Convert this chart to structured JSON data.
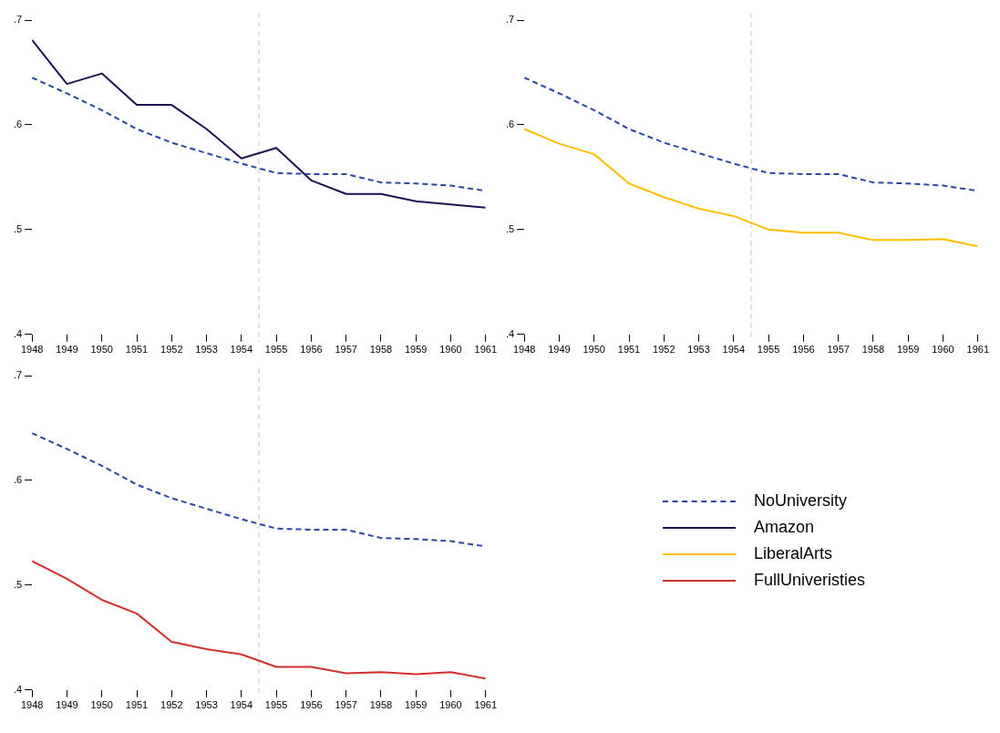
{
  "chart_data": [
    {
      "type": "line",
      "x": [
        1948,
        1949,
        1950,
        1951,
        1952,
        1953,
        1954,
        1955,
        1956,
        1957,
        1958,
        1959,
        1960,
        1961
      ],
      "xlim": [
        1948,
        1961
      ],
      "xticks": [
        1948,
        1949,
        1950,
        1951,
        1952,
        1953,
        1954,
        1955,
        1956,
        1957,
        1958,
        1959,
        1960,
        1961
      ],
      "ylim": [
        0.4,
        0.7
      ],
      "yticks": [
        {
          "value": 0.4,
          "label": ".4"
        },
        {
          "value": 0.5,
          "label": ".5"
        },
        {
          "value": 0.6,
          "label": ".6"
        },
        {
          "value": 0.7,
          "label": ".7"
        }
      ],
      "grid": false,
      "legend": "bottom",
      "ref_lines": [
        {
          "axis": "x",
          "value": 1954.5,
          "color": "#d9d9d9",
          "line_style": "dashed"
        }
      ],
      "series": [
        {
          "name": "NoUniversity",
          "color": "#2a46a0",
          "line_style": "dashed",
          "values": [
            0.645,
            0.63,
            0.614,
            0.596,
            0.583,
            0.573,
            0.563,
            0.554,
            0.553,
            0.553,
            0.545,
            0.544,
            0.542,
            0.537
          ]
        },
        {
          "name": "Amazon",
          "color": "#1a1550",
          "line_style": "solid",
          "values": [
            0.681,
            0.639,
            0.649,
            0.619,
            0.619,
            0.596,
            0.568,
            0.578,
            0.547,
            0.534,
            0.534,
            0.527,
            0.524,
            0.521
          ]
        }
      ]
    },
    {
      "type": "line",
      "x": [
        1948,
        1949,
        1950,
        1951,
        1952,
        1953,
        1954,
        1955,
        1956,
        1957,
        1958,
        1959,
        1960,
        1961
      ],
      "xlim": [
        1948,
        1961
      ],
      "xticks": [
        1948,
        1949,
        1950,
        1951,
        1952,
        1953,
        1954,
        1955,
        1956,
        1957,
        1958,
        1959,
        1960,
        1961
      ],
      "ylim": [
        0.4,
        0.7
      ],
      "yticks": [
        {
          "value": 0.4,
          "label": ".4"
        },
        {
          "value": 0.5,
          "label": ".5"
        },
        {
          "value": 0.6,
          "label": ".6"
        },
        {
          "value": 0.7,
          "label": ".7"
        }
      ],
      "grid": false,
      "legend": "bottom",
      "ref_lines": [
        {
          "axis": "x",
          "value": 1954.5,
          "color": "#d9d9d9",
          "line_style": "dashed"
        }
      ],
      "series": [
        {
          "name": "NoUniversity",
          "color": "#2a46a0",
          "line_style": "dashed",
          "values": [
            0.645,
            0.63,
            0.614,
            0.596,
            0.583,
            0.573,
            0.563,
            0.554,
            0.553,
            0.553,
            0.545,
            0.544,
            0.542,
            0.537
          ]
        },
        {
          "name": "LiberalArts",
          "color": "#ffbf00",
          "line_style": "solid",
          "values": [
            0.596,
            0.582,
            0.572,
            0.544,
            0.531,
            0.52,
            0.513,
            0.5,
            0.497,
            0.497,
            0.49,
            0.49,
            0.491,
            0.484
          ]
        }
      ]
    },
    {
      "type": "line",
      "x": [
        1948,
        1949,
        1950,
        1951,
        1952,
        1953,
        1954,
        1955,
        1956,
        1957,
        1958,
        1959,
        1960,
        1961
      ],
      "xlim": [
        1948,
        1961
      ],
      "xticks": [
        1948,
        1949,
        1950,
        1951,
        1952,
        1953,
        1954,
        1955,
        1956,
        1957,
        1958,
        1959,
        1960,
        1961
      ],
      "ylim": [
        0.4,
        0.7
      ],
      "yticks": [
        {
          "value": 0.4,
          "label": ".4"
        },
        {
          "value": 0.5,
          "label": ".5"
        },
        {
          "value": 0.6,
          "label": ".6"
        },
        {
          "value": 0.7,
          "label": ".7"
        }
      ],
      "grid": false,
      "legend": "right",
      "ref_lines": [
        {
          "axis": "x",
          "value": 1954.5,
          "color": "#d9d9d9",
          "line_style": "dashed"
        }
      ],
      "series": [
        {
          "name": "NoUniversity",
          "color": "#2a46a0",
          "line_style": "dashed",
          "values": [
            0.645,
            0.63,
            0.614,
            0.596,
            0.583,
            0.573,
            0.563,
            0.554,
            0.553,
            0.553,
            0.545,
            0.544,
            0.542,
            0.537
          ]
        },
        {
          "name": "FullUniveristies",
          "color": "#d03030",
          "line_style": "solid",
          "values": [
            0.523,
            0.506,
            0.486,
            0.473,
            0.446,
            0.439,
            0.434,
            0.422,
            0.422,
            0.416,
            0.417,
            0.415,
            0.417,
            0.411
          ]
        }
      ]
    }
  ]
}
